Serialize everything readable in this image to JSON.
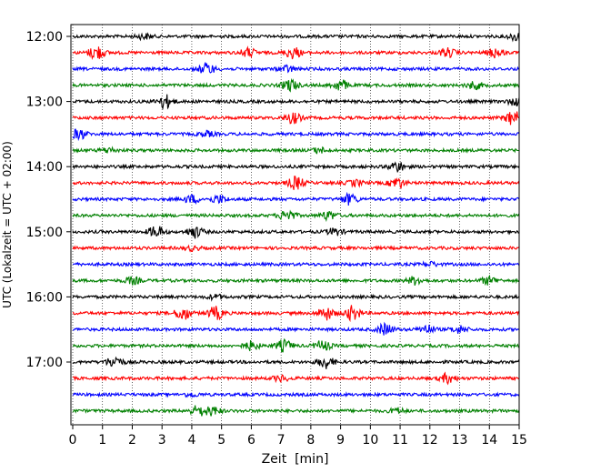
{
  "chart_data": {
    "type": "line",
    "title": "",
    "xlabel": "Zeit  [min]",
    "ylabel": "UTC (Lokalzeit = UTC + 02:00)",
    "xlim": [
      0,
      15
    ],
    "x_ticks": [
      0,
      1,
      2,
      3,
      4,
      5,
      6,
      7,
      8,
      9,
      10,
      11,
      12,
      13,
      14,
      15
    ],
    "x_tick_labels": [
      "0",
      "1",
      "2",
      "3",
      "4",
      "5",
      "6",
      "7",
      "8",
      "9",
      "10",
      "11",
      "12",
      "13",
      "14",
      "15"
    ],
    "y_tick_labels": [
      "12:00",
      "13:00",
      "14:00",
      "15:00",
      "16:00",
      "17:00"
    ],
    "y_ticks_trace_index": [
      0,
      4,
      8,
      12,
      16,
      20
    ],
    "grid": "vertical dotted lines at each minute",
    "minutes_per_trace": 15,
    "start_time": "12:00",
    "trace_count": 24,
    "colors": [
      "#000000",
      "#ff0000",
      "#0000ff",
      "#008000"
    ],
    "traces": [
      {
        "start": "12:00",
        "color": "#000000",
        "events": [
          {
            "t": 2.4,
            "amp": 0.35
          },
          {
            "t": 14.9,
            "amp": 0.55
          }
        ]
      },
      {
        "start": "12:15",
        "color": "#ff0000",
        "events": [
          {
            "t": 0.8,
            "amp": 1.0
          },
          {
            "t": 5.9,
            "amp": 0.6
          },
          {
            "t": 7.4,
            "amp": 0.8
          },
          {
            "t": 12.6,
            "amp": 0.6
          },
          {
            "t": 14.2,
            "amp": 0.7
          }
        ]
      },
      {
        "start": "12:30",
        "color": "#0000ff",
        "events": [
          {
            "t": 4.5,
            "amp": 0.8
          },
          {
            "t": 7.2,
            "amp": 0.45
          }
        ]
      },
      {
        "start": "12:45",
        "color": "#008000",
        "events": [
          {
            "t": 7.3,
            "amp": 0.85
          },
          {
            "t": 9.0,
            "amp": 0.75
          },
          {
            "t": 13.5,
            "amp": 0.5
          }
        ]
      },
      {
        "start": "13:00",
        "color": "#000000",
        "events": [
          {
            "t": 3.1,
            "amp": 0.95
          },
          {
            "t": 14.9,
            "amp": 0.55
          }
        ]
      },
      {
        "start": "13:15",
        "color": "#ff0000",
        "events": [
          {
            "t": 7.4,
            "amp": 0.75
          },
          {
            "t": 14.8,
            "amp": 1.0
          }
        ]
      },
      {
        "start": "13:30",
        "color": "#0000ff",
        "events": [
          {
            "t": 0.2,
            "amp": 0.7
          },
          {
            "t": 4.5,
            "amp": 0.35
          }
        ]
      },
      {
        "start": "13:45",
        "color": "#008000",
        "events": [
          {
            "t": 1.2,
            "amp": 0.35
          },
          {
            "t": 8.3,
            "amp": 0.35
          }
        ]
      },
      {
        "start": "14:00",
        "color": "#000000",
        "events": [
          {
            "t": 10.9,
            "amp": 0.7
          }
        ]
      },
      {
        "start": "14:15",
        "color": "#ff0000",
        "events": [
          {
            "t": 7.5,
            "amp": 0.9
          },
          {
            "t": 10.9,
            "amp": 0.75
          },
          {
            "t": 9.5,
            "amp": 0.4
          }
        ]
      },
      {
        "start": "14:30",
        "color": "#0000ff",
        "events": [
          {
            "t": 4.0,
            "amp": 0.55
          },
          {
            "t": 4.9,
            "amp": 0.55
          },
          {
            "t": 9.3,
            "amp": 0.75
          }
        ]
      },
      {
        "start": "14:45",
        "color": "#008000",
        "events": [
          {
            "t": 7.2,
            "amp": 0.8
          },
          {
            "t": 8.6,
            "amp": 0.6
          }
        ]
      },
      {
        "start": "15:00",
        "color": "#000000",
        "events": [
          {
            "t": 2.8,
            "amp": 0.8
          },
          {
            "t": 4.1,
            "amp": 0.8
          },
          {
            "t": 8.8,
            "amp": 0.5
          }
        ]
      },
      {
        "start": "15:15",
        "color": "#ff0000",
        "events": [
          {
            "t": 4.0,
            "amp": 0.3
          }
        ]
      },
      {
        "start": "15:30",
        "color": "#0000ff",
        "events": [
          {
            "t": 12.0,
            "amp": 0.3
          }
        ]
      },
      {
        "start": "15:45",
        "color": "#008000",
        "events": [
          {
            "t": 2.0,
            "amp": 0.5
          },
          {
            "t": 11.5,
            "amp": 0.55
          },
          {
            "t": 14.0,
            "amp": 0.55
          }
        ]
      },
      {
        "start": "16:00",
        "color": "#000000",
        "events": [
          {
            "t": 4.8,
            "amp": 0.3
          }
        ]
      },
      {
        "start": "16:15",
        "color": "#ff0000",
        "events": [
          {
            "t": 3.7,
            "amp": 0.95
          },
          {
            "t": 4.8,
            "amp": 0.9
          },
          {
            "t": 8.5,
            "amp": 0.9
          },
          {
            "t": 9.4,
            "amp": 1.0
          }
        ]
      },
      {
        "start": "16:30",
        "color": "#0000ff",
        "events": [
          {
            "t": 10.5,
            "amp": 0.8
          },
          {
            "t": 11.9,
            "amp": 0.6
          },
          {
            "t": 13.0,
            "amp": 0.5
          }
        ]
      },
      {
        "start": "16:45",
        "color": "#008000",
        "events": [
          {
            "t": 6.0,
            "amp": 0.6
          },
          {
            "t": 7.1,
            "amp": 0.8
          },
          {
            "t": 8.4,
            "amp": 0.7
          }
        ]
      },
      {
        "start": "17:00",
        "color": "#000000",
        "events": [
          {
            "t": 1.4,
            "amp": 0.8
          },
          {
            "t": 8.5,
            "amp": 0.85
          }
        ]
      },
      {
        "start": "17:15",
        "color": "#ff0000",
        "events": [
          {
            "t": 7.0,
            "amp": 0.4
          },
          {
            "t": 12.6,
            "amp": 0.65
          }
        ]
      },
      {
        "start": "17:30",
        "color": "#0000ff",
        "events": [
          {
            "t": 4.0,
            "amp": 0.25
          }
        ]
      },
      {
        "start": "17:45",
        "color": "#008000",
        "events": [
          {
            "t": 4.2,
            "amp": 0.7
          },
          {
            "t": 4.7,
            "amp": 0.6
          },
          {
            "t": 10.9,
            "amp": 0.35
          }
        ]
      }
    ]
  }
}
